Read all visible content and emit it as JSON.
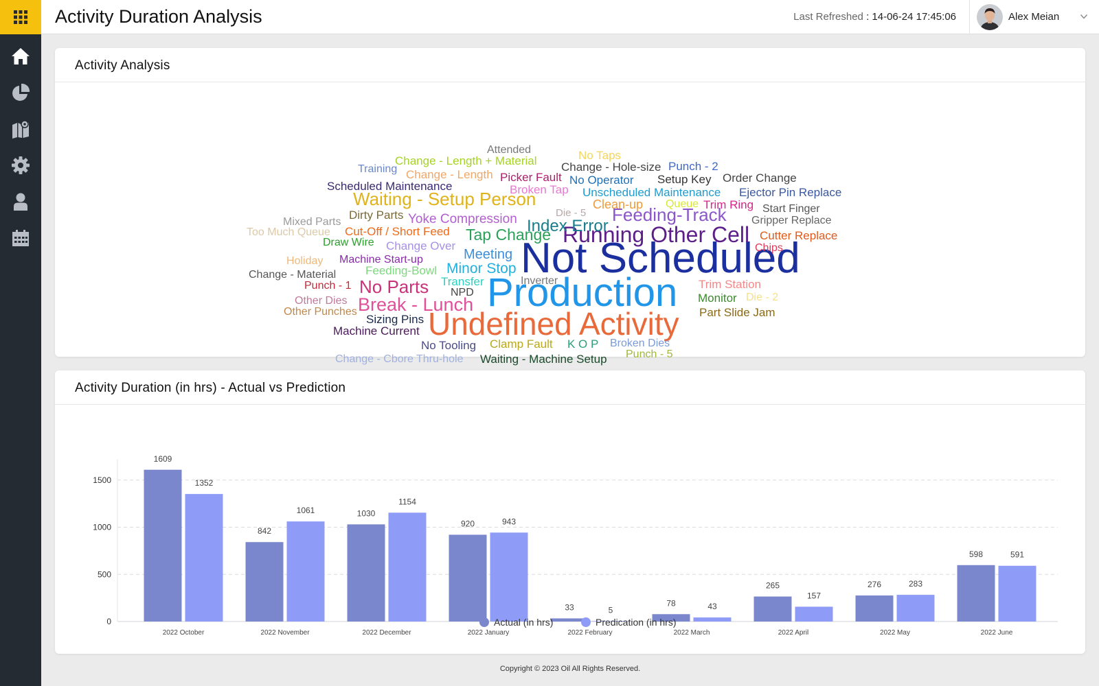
{
  "header": {
    "title": "Activity Duration Analysis",
    "refresh_label": "Last Refreshed",
    "refresh_value": ": 14-06-24  17:45:06",
    "user_name": "Alex Meian"
  },
  "sidebar": {
    "items": [
      {
        "icon": "home-icon",
        "active": true
      },
      {
        "icon": "pie-chart-icon"
      },
      {
        "icon": "map-icon"
      },
      {
        "icon": "gear-icon"
      },
      {
        "icon": "user-badge-icon"
      },
      {
        "icon": "calendar-icon"
      }
    ]
  },
  "word_cloud": {
    "title": "Activity Analysis",
    "words": [
      {
        "text": "Not Scheduled",
        "color": "#1b2f9e"
      },
      {
        "text": "Production",
        "color": "#2196e8"
      },
      {
        "text": "Undefined Activity",
        "color": "#e86a3a"
      },
      {
        "text": "Running Other Cell",
        "color": "#5c1f8a"
      },
      {
        "text": "Waiting - Setup Person",
        "color": "#e0b31a"
      },
      {
        "text": "Feeding-Track",
        "color": "#8a56c9"
      },
      {
        "text": "Index Error",
        "color": "#197d8c"
      },
      {
        "text": "Break - Lunch",
        "color": "#e0509a"
      },
      {
        "text": "No Parts",
        "color": "#c9327a"
      },
      {
        "text": "Tap Change",
        "color": "#2aa05a"
      },
      {
        "text": "Minor Stop",
        "color": "#1fb0e0"
      },
      {
        "text": "Meeting",
        "color": "#3d8ed8"
      },
      {
        "text": "Yoke Compression",
        "color": "#b25fd0"
      },
      {
        "text": "Attended",
        "color": "#777777"
      },
      {
        "text": "No Taps",
        "color": "#f5d55a"
      },
      {
        "text": "Change - Length + Material",
        "color": "#a6d321"
      },
      {
        "text": "Training",
        "color": "#6a87c9"
      },
      {
        "text": "Change - Length",
        "color": "#f0a868"
      },
      {
        "text": "Change - Hole-size",
        "color": "#444444"
      },
      {
        "text": "Punch - 2",
        "color": "#4068c9"
      },
      {
        "text": "Order Change",
        "color": "#444444"
      },
      {
        "text": "Picker Fault",
        "color": "#b01c6c"
      },
      {
        "text": "No Operator",
        "color": "#1f6fb5"
      },
      {
        "text": "Setup Key",
        "color": "#333333"
      },
      {
        "text": "Scheduled Maintenance",
        "color": "#3a2a6e"
      },
      {
        "text": "Broken Tap",
        "color": "#e57bd0"
      },
      {
        "text": "Unscheduled Maintenance",
        "color": "#1d9cd0"
      },
      {
        "text": "Ejector Pin Replace",
        "color": "#3a58a0"
      },
      {
        "text": "Clean-up",
        "color": "#f09a3a"
      },
      {
        "text": "Queue",
        "color": "#d9e832"
      },
      {
        "text": "Trim Ring",
        "color": "#d9248a"
      },
      {
        "text": "Start Finger",
        "color": "#555555"
      },
      {
        "text": "Dirty Parts",
        "color": "#7a6a3a"
      },
      {
        "text": "Die - 5",
        "color": "#b8a8a8"
      },
      {
        "text": "Gripper Replace",
        "color": "#666666"
      },
      {
        "text": "Mixed Parts",
        "color": "#9a9a9a"
      },
      {
        "text": "Too Much Queue",
        "color": "#dcc9a8"
      },
      {
        "text": "Cut-Off / Short Feed",
        "color": "#f06a1a"
      },
      {
        "text": "Cutter Replace",
        "color": "#e05a1a"
      },
      {
        "text": "Draw Wire",
        "color": "#2aa02a"
      },
      {
        "text": "Change Over",
        "color": "#a690e8"
      },
      {
        "text": "Chips",
        "color": "#e03a5a"
      },
      {
        "text": "Holiday",
        "color": "#f0b878"
      },
      {
        "text": "Machine Start-up",
        "color": "#8a2aaa"
      },
      {
        "text": "Change - Material",
        "color": "#555555"
      },
      {
        "text": "Feeding-Bowl",
        "color": "#7ed87e"
      },
      {
        "text": "Transfer",
        "color": "#2ad0c0"
      },
      {
        "text": "Inverter",
        "color": "#777777"
      },
      {
        "text": "Trim Station",
        "color": "#f08a8a"
      },
      {
        "text": "Punch - 1",
        "color": "#c02a3a"
      },
      {
        "text": "NPD",
        "color": "#444444"
      },
      {
        "text": "Other Dies",
        "color": "#c07a9a"
      },
      {
        "text": "Monitor",
        "color": "#3a8a2a"
      },
      {
        "text": "Die - 2",
        "color": "#f5e08a"
      },
      {
        "text": "Other Punches",
        "color": "#c0884a"
      },
      {
        "text": "Part Slide Jam",
        "color": "#8a6a1a"
      },
      {
        "text": "Sizing Pins",
        "color": "#1a2a4a"
      },
      {
        "text": "Machine Current",
        "color": "#4a1a5a"
      },
      {
        "text": "No Tooling",
        "color": "#4a4a8a"
      },
      {
        "text": "Clamp Fault",
        "color": "#b8a81a"
      },
      {
        "text": "K O P",
        "color": "#2aa07a"
      },
      {
        "text": "Broken Dies",
        "color": "#7a9ad8"
      },
      {
        "text": "Punch - 5",
        "color": "#a0b83a"
      },
      {
        "text": "Change - Cbore Thru-hole",
        "color": "#a0b0e0"
      },
      {
        "text": "Waiting - Machine Setup",
        "color": "#1a4a2a"
      }
    ]
  },
  "chart_data": {
    "type": "bar",
    "title": "Activity Duration (in hrs) - Actual vs Prediction",
    "categories": [
      "2022 October",
      "2022 November",
      "2022 December",
      "2022 January",
      "2022 February",
      "2022 March",
      "2022 April",
      "2022 May",
      "2022 June"
    ],
    "series": [
      {
        "name": "Actual (in hrs)",
        "color": "#7b87cd",
        "values": [
          1609,
          842,
          1030,
          920,
          33,
          78,
          265,
          276,
          598
        ]
      },
      {
        "name": "Predication (in hrs)",
        "color": "#8f9cf7",
        "values": [
          1352,
          1061,
          1154,
          943,
          5,
          43,
          157,
          283,
          591
        ]
      }
    ],
    "y_ticks": [
      0,
      500,
      1000,
      1500
    ],
    "ylim": [
      0,
      1720
    ],
    "grid": true,
    "legend_position": "bottom-center",
    "data_labels": true
  },
  "footer": {
    "copyright": "Copyright © 2023 Oil All Rights Reserved."
  }
}
